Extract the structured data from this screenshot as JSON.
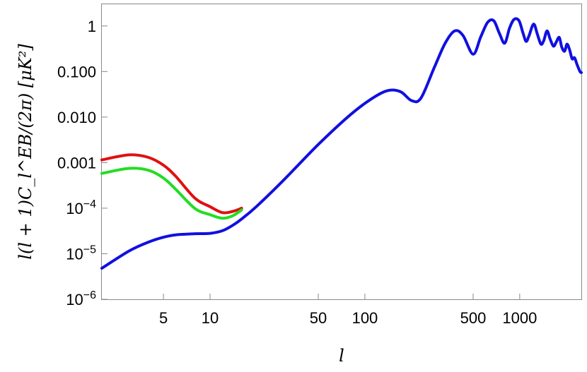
{
  "chart_data": {
    "type": "line",
    "title": "",
    "xlabel": "l",
    "ylabel": "l(l + 1)C_l^EB/(2π) [μK²]",
    "x_scale": "log",
    "y_scale": "log",
    "xlim": [
      2,
      2500
    ],
    "ylim": [
      1e-06,
      3
    ],
    "grid": false,
    "x_ticks": [
      {
        "value": 5,
        "label": "5"
      },
      {
        "value": 10,
        "label": "10"
      },
      {
        "value": 50,
        "label": "50"
      },
      {
        "value": 100,
        "label": "100"
      },
      {
        "value": 500,
        "label": "500"
      },
      {
        "value": 1000,
        "label": "1000"
      }
    ],
    "y_ticks": [
      {
        "value": 1e-06,
        "label": "10−6"
      },
      {
        "value": 1e-05,
        "label": "10−5"
      },
      {
        "value": 0.0001,
        "label": "10−4"
      },
      {
        "value": 0.001,
        "label": "0.001"
      },
      {
        "value": 0.01,
        "label": "0.010"
      },
      {
        "value": 0.1,
        "label": "0.100"
      },
      {
        "value": 1,
        "label": "1"
      }
    ],
    "series": [
      {
        "color": "#e01010",
        "x": [
          2,
          3,
          4,
          5,
          6,
          8,
          10,
          12,
          14,
          16
        ],
        "y": [
          0.00115,
          0.00148,
          0.0013,
          0.00088,
          0.0005,
          0.000165,
          0.000108,
          8e-05,
          8.5e-05,
          0.0001
        ]
      },
      {
        "color": "#22dd22",
        "x": [
          2,
          3,
          4,
          5,
          6,
          8,
          10,
          12,
          14,
          16
        ],
        "y": [
          0.00058,
          0.00075,
          0.00068,
          0.00046,
          0.00026,
          9.8e-05,
          7.2e-05,
          6e-05,
          6.8e-05,
          9.2e-05
        ]
      },
      {
        "color": "#1010e0",
        "x": [
          2,
          3,
          4,
          5,
          6,
          8,
          10,
          12,
          14,
          16,
          20,
          30,
          50,
          80,
          110,
          140,
          170,
          200,
          230,
          280,
          330,
          380,
          430,
          500,
          560,
          620,
          680,
          740,
          800,
          860,
          920,
          990,
          1050,
          1100,
          1150,
          1230,
          1300,
          1370,
          1430,
          1500,
          1570,
          1650,
          1720,
          1800,
          1870,
          1950,
          2020,
          2100,
          2180,
          2260,
          2350,
          2450,
          2500
        ],
        "y": [
          4.8e-06,
          1.15e-05,
          1.8e-05,
          2.3e-05,
          2.6e-05,
          2.75e-05,
          2.8e-05,
          3.2e-05,
          4.2e-05,
          5.8e-05,
          0.00011,
          0.00042,
          0.0025,
          0.011,
          0.025,
          0.038,
          0.036,
          0.023,
          0.026,
          0.12,
          0.42,
          0.78,
          0.62,
          0.24,
          0.58,
          1.2,
          1.3,
          0.68,
          0.42,
          0.9,
          1.4,
          1.3,
          0.7,
          0.46,
          0.62,
          1.1,
          0.66,
          0.4,
          0.48,
          0.78,
          0.52,
          0.36,
          0.44,
          0.56,
          0.34,
          0.28,
          0.4,
          0.3,
          0.19,
          0.2,
          0.14,
          0.1,
          0.095
        ]
      }
    ]
  }
}
